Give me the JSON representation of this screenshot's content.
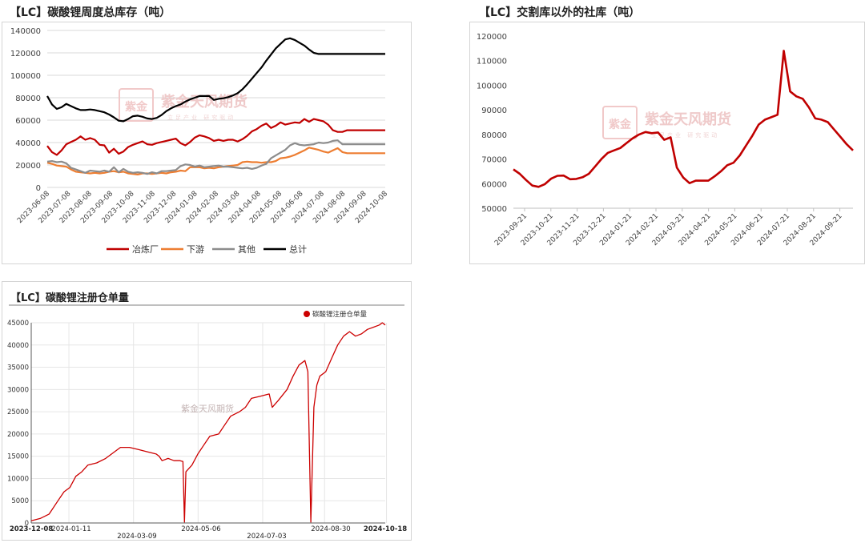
{
  "watermark": {
    "seal_text": "紫金",
    "brand": "紫金天风期货",
    "slogan": "立足产业 研究驱动",
    "plain": "紫金天风期货"
  },
  "colors": {
    "red": "#c00000",
    "orange": "#ed7d31",
    "gray": "#8c8c8c",
    "black": "#000000",
    "grid": "#d9d9d9",
    "axis": "#595959"
  },
  "chart_data": [
    {
      "type": "line",
      "title": "【LC】碳酸锂周度总库存（吨）",
      "x": [
        "2023-06-08",
        "2023-06-15",
        "2023-06-22",
        "2023-06-29",
        "2023-07-06",
        "2023-07-13",
        "2023-07-20",
        "2023-07-27",
        "2023-08-03",
        "2023-08-10",
        "2023-08-17",
        "2023-08-24",
        "2023-08-31",
        "2023-09-07",
        "2023-09-14",
        "2023-09-21",
        "2023-09-28",
        "2023-10-05",
        "2023-10-12",
        "2023-10-19",
        "2023-10-26",
        "2023-11-02",
        "2023-11-09",
        "2023-11-16",
        "2023-11-23",
        "2023-11-30",
        "2023-12-07",
        "2023-12-14",
        "2023-12-21",
        "2023-12-28",
        "2024-01-04",
        "2024-01-11",
        "2024-01-18",
        "2024-01-25",
        "2024-02-01",
        "2024-02-08",
        "2024-02-15",
        "2024-02-22",
        "2024-02-29",
        "2024-03-07",
        "2024-03-14",
        "2024-03-21",
        "2024-03-28",
        "2024-04-04",
        "2024-04-11",
        "2024-04-18",
        "2024-04-25",
        "2024-05-02",
        "2024-05-09",
        "2024-05-16",
        "2024-05-23",
        "2024-05-30",
        "2024-06-06",
        "2024-06-13",
        "2024-06-20",
        "2024-06-27",
        "2024-07-04",
        "2024-07-11",
        "2024-07-18",
        "2024-07-25",
        "2024-08-01",
        "2024-08-08",
        "2024-08-15",
        "2024-08-22",
        "2024-08-29",
        "2024-09-05",
        "2024-09-12",
        "2024-09-19",
        "2024-09-26",
        "2024-10-03",
        "2024-10-10",
        "2024-10-17"
      ],
      "x_ticks": [
        "2023-06-08",
        "2023-07-08",
        "2023-08-08",
        "2023-09-08",
        "2023-10-08",
        "2023-11-08",
        "2023-12-08",
        "2024-01-08",
        "2024-02-08",
        "2024-03-08",
        "2024-04-08",
        "2024-05-08",
        "2024-06-08",
        "2024-07-08",
        "2024-08-08",
        "2024-09-08",
        "2024-10-08"
      ],
      "ylim": [
        0,
        140000
      ],
      "y_ticks": [
        "0",
        "20000",
        "40000",
        "60000",
        "80000",
        "100000",
        "120000",
        "140000"
      ],
      "legend_position": "bottom",
      "series": [
        {
          "name": "冶炼厂",
          "color": "#c00000",
          "values": [
            37000,
            31500,
            29000,
            33000,
            38500,
            40500,
            42500,
            45500,
            42500,
            44000,
            42500,
            38000,
            37500,
            31000,
            34500,
            30000,
            32000,
            36000,
            38000,
            39500,
            41000,
            38500,
            38000,
            39500,
            40500,
            41500,
            42500,
            43500,
            39500,
            37500,
            40500,
            44500,
            46500,
            45500,
            44000,
            41500,
            42500,
            41500,
            42500,
            42500,
            41000,
            43000,
            46000,
            50000,
            52000,
            55000,
            57000,
            53000,
            55000,
            58000,
            56000,
            57000,
            58000,
            57500,
            61000,
            58500,
            61000,
            60000,
            59000,
            56000,
            51000,
            49500,
            49500,
            51000,
            51000,
            51000,
            51000,
            51000,
            51000,
            51000,
            51000,
            51000
          ]
        },
        {
          "name": "下游",
          "color": "#ed7d31",
          "values": [
            22000,
            21000,
            19500,
            19000,
            18500,
            16000,
            14000,
            13500,
            13000,
            12500,
            13000,
            12500,
            13000,
            14000,
            14500,
            13500,
            14000,
            12500,
            12000,
            11500,
            12500,
            12500,
            12000,
            12500,
            13000,
            12500,
            13500,
            14000,
            15000,
            14500,
            18000,
            18000,
            18000,
            17000,
            17500,
            17000,
            18000,
            18500,
            19000,
            19500,
            20000,
            22500,
            23000,
            22500,
            22500,
            22000,
            22500,
            22500,
            23500,
            26000,
            26500,
            27500,
            29000,
            31000,
            33000,
            35500,
            34500,
            33500,
            32000,
            31000,
            33000,
            35000,
            31500,
            30500,
            30500,
            30500,
            30500,
            30500,
            30500,
            30500,
            30500,
            30500
          ]
        },
        {
          "name": "其他",
          "color": "#8c8c8c",
          "values": [
            23000,
            23500,
            22500,
            23000,
            21500,
            17500,
            16000,
            14500,
            13000,
            15000,
            14500,
            14000,
            15000,
            14000,
            18000,
            13500,
            16500,
            14000,
            13000,
            13500,
            13000,
            12000,
            13500,
            12500,
            14500,
            14500,
            15000,
            15500,
            19000,
            20500,
            20000,
            18500,
            19500,
            18000,
            18500,
            19000,
            19500,
            18500,
            18500,
            18000,
            17500,
            17000,
            17500,
            16500,
            17500,
            19500,
            21000,
            26000,
            28500,
            31000,
            33500,
            37500,
            39500,
            38000,
            37500,
            38000,
            38500,
            40000,
            39500,
            40000,
            41500,
            42000,
            38500,
            38500,
            38500,
            38500,
            38500,
            38500,
            38500,
            38500,
            38500,
            38500
          ]
        },
        {
          "name": "总计",
          "color": "#000000",
          "values": [
            81500,
            74000,
            70000,
            71500,
            74500,
            72500,
            70500,
            69000,
            69000,
            69500,
            69000,
            68000,
            67000,
            65000,
            62500,
            59500,
            59000,
            61000,
            63500,
            64000,
            63000,
            61500,
            61000,
            62000,
            64500,
            68000,
            70500,
            72500,
            74000,
            76500,
            78500,
            80000,
            81500,
            81500,
            81500,
            78000,
            79000,
            79500,
            80500,
            82000,
            84000,
            87500,
            92000,
            97000,
            102000,
            107000,
            113000,
            118500,
            124000,
            128000,
            132000,
            133000,
            131500,
            129000,
            126500,
            123000,
            120000,
            119000,
            119000,
            119000,
            119000,
            119000,
            119000,
            119000,
            119000,
            119000,
            119000,
            119000,
            119000,
            119000,
            119000,
            119000
          ]
        }
      ]
    },
    {
      "type": "line",
      "title": "【LC】交割库以外的社库（吨）",
      "x_ticks": [
        "2023-09-21",
        "2023-10-21",
        "2023-11-21",
        "2023-12-21",
        "2024-01-21",
        "2024-02-21",
        "2024-03-21",
        "2024-04-21",
        "2024-05-21",
        "2024-06-21",
        "2024-07-21",
        "2024-08-21",
        "2024-09-21"
      ],
      "ylim": [
        50000,
        120000
      ],
      "y_ticks": [
        "50000",
        "60000",
        "70000",
        "80000",
        "90000",
        "100000",
        "110000",
        "120000"
      ],
      "series": [
        {
          "name": "",
          "color": "#c00000",
          "values": [
            65800,
            64000,
            61500,
            59200,
            58700,
            59800,
            62000,
            63200,
            63300,
            61800,
            61900,
            62600,
            64000,
            67000,
            70000,
            72500,
            73500,
            74500,
            76500,
            78500,
            80000,
            81000,
            80500,
            80800,
            77800,
            78800,
            66500,
            62500,
            60200,
            61200,
            61200,
            61200,
            63000,
            65000,
            67500,
            68500,
            71500,
            75500,
            79500,
            84000,
            86000,
            87000,
            88000,
            114000,
            97500,
            95500,
            94500,
            91000,
            86500,
            86000,
            85000,
            82000,
            79000,
            76000,
            73500
          ]
        }
      ]
    },
    {
      "type": "line",
      "title": "【LC】碳酸锂注册仓单量",
      "legend": "碳酸锂注册仓单量",
      "legend_position": "top-right",
      "ylim": [
        0,
        45000
      ],
      "y_ticks": [
        "0",
        "5000",
        "10000",
        "15000",
        "20000",
        "25000",
        "30000",
        "35000",
        "40000",
        "45000"
      ],
      "x_ticks": [
        "2023-12-08",
        "2024-01-11",
        "2024-03-09",
        "2024-05-06",
        "2024-07-03",
        "2024-08-30",
        "2024-10-18"
      ],
      "series": [
        {
          "name": "碳酸锂注册仓单量",
          "color": "#cc0000",
          "points": [
            [
              0,
              500
            ],
            [
              3,
              1000
            ],
            [
              6,
              2000
            ],
            [
              9,
              5000
            ],
            [
              11,
              7000
            ],
            [
              13,
              8000
            ],
            [
              15,
              10500
            ],
            [
              17,
              11500
            ],
            [
              19,
              13000
            ],
            [
              22,
              13500
            ],
            [
              25,
              14500
            ],
            [
              28,
              16000
            ],
            [
              30,
              17000
            ],
            [
              33,
              17000
            ],
            [
              36,
              16500
            ],
            [
              39,
              16000
            ],
            [
              42,
              15500
            ],
            [
              43,
              15000
            ],
            [
              44,
              14000
            ],
            [
              46,
              14500
            ],
            [
              48,
              14000
            ],
            [
              50,
              14000
            ],
            [
              51,
              13800
            ],
            [
              51.5,
              200
            ],
            [
              52,
              11500
            ],
            [
              54,
              13000
            ],
            [
              56,
              15500
            ],
            [
              58,
              17500
            ],
            [
              60,
              19500
            ],
            [
              63,
              20000
            ],
            [
              65,
              22000
            ],
            [
              67,
              24000
            ],
            [
              70,
              25000
            ],
            [
              72,
              26000
            ],
            [
              74,
              28000
            ],
            [
              77,
              28500
            ],
            [
              80,
              29000
            ],
            [
              81,
              26000
            ],
            [
              83,
              27500
            ],
            [
              86,
              30000
            ],
            [
              88,
              33000
            ],
            [
              90,
              35500
            ],
            [
              92,
              36500
            ],
            [
              93,
              34000
            ],
            [
              94,
              200
            ],
            [
              95,
              26000
            ],
            [
              96,
              31000
            ],
            [
              97,
              33000
            ],
            [
              99,
              34000
            ],
            [
              101,
              37000
            ],
            [
              103,
              40000
            ],
            [
              105,
              42000
            ],
            [
              107,
              43000
            ],
            [
              109,
              42000
            ],
            [
              111,
              42500
            ],
            [
              113,
              43500
            ],
            [
              115,
              44000
            ],
            [
              117,
              44500
            ],
            [
              118,
              45000
            ],
            [
              119,
              44500
            ]
          ]
        }
      ]
    }
  ]
}
